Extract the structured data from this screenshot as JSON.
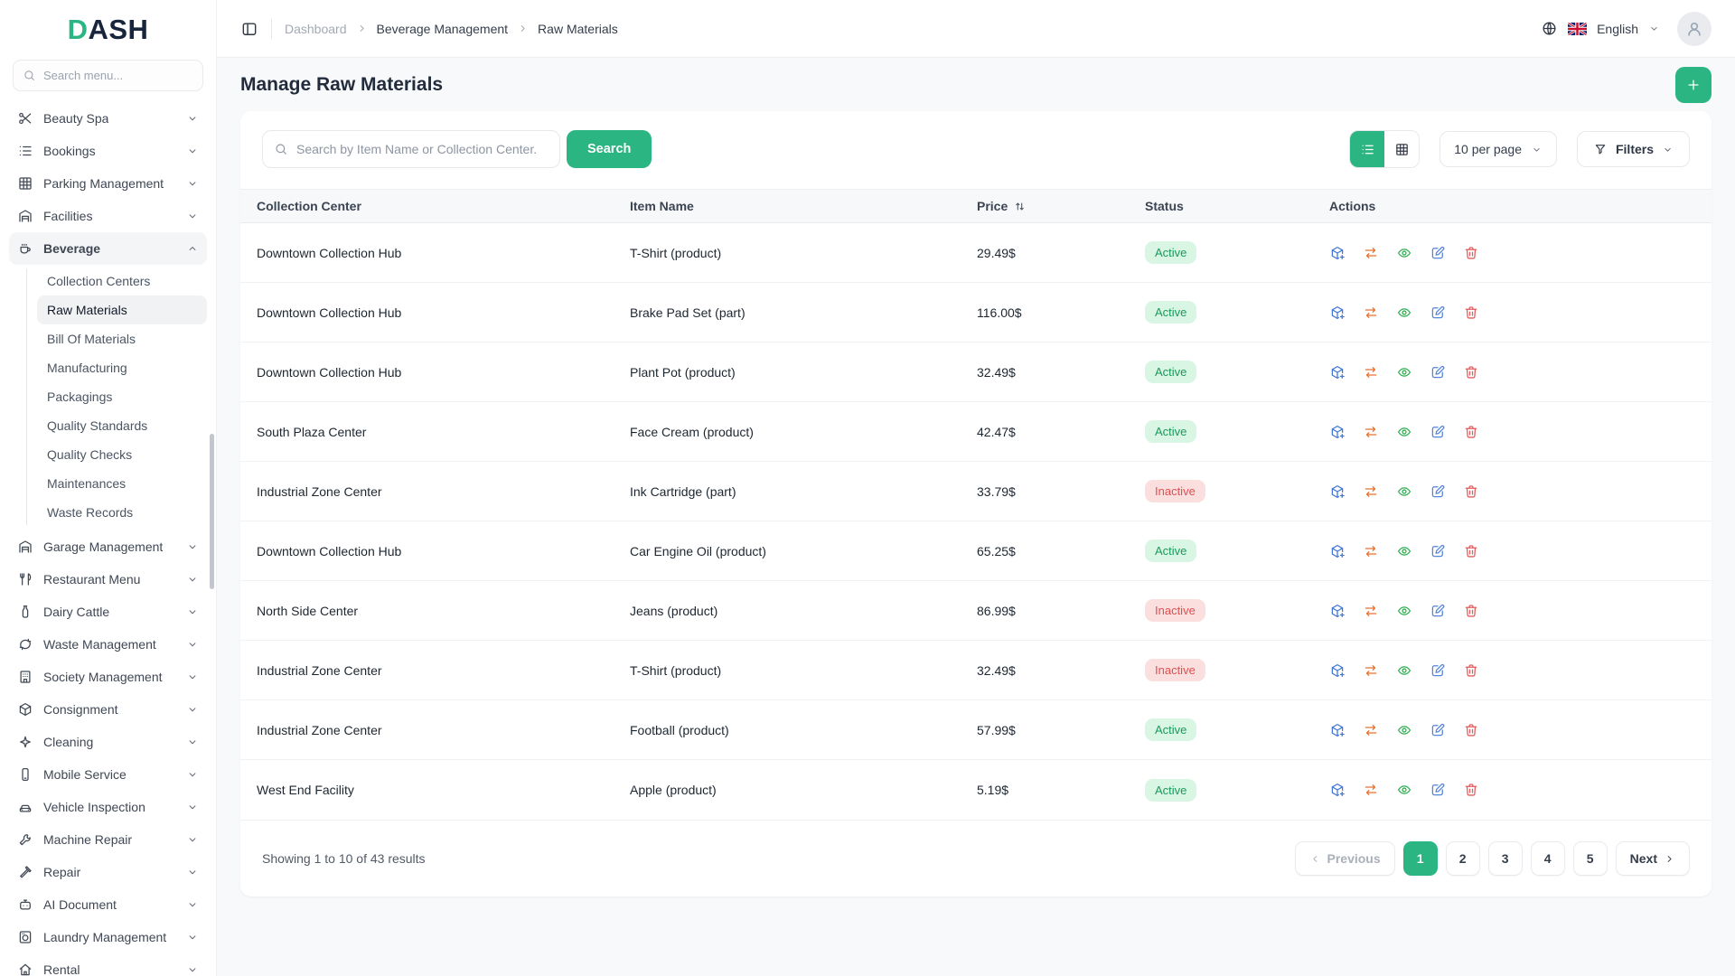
{
  "app": {
    "logo_accent": "D",
    "logo_rest": "ASH"
  },
  "colors": {
    "accent": "#2bb583",
    "active_bg": "#d9f6e5",
    "active_text": "#199a59",
    "inactive_bg": "#fbdfdf",
    "inactive_text": "#e04f4f",
    "action_blue": "#4277d6",
    "action_orange": "#e8712e",
    "action_green": "#2fae52",
    "action_blue2": "#5585dd",
    "action_red": "#e25c5c"
  },
  "sidebar": {
    "search_placeholder": "Search menu...",
    "items": [
      {
        "label": "Beauty Spa",
        "icon": "scissors"
      },
      {
        "label": "Bookings",
        "icon": "list"
      },
      {
        "label": "Parking Management",
        "icon": "grid"
      },
      {
        "label": "Facilities",
        "icon": "garage"
      },
      {
        "label": "Beverage",
        "icon": "coffee",
        "expanded": true,
        "children": [
          {
            "label": "Collection Centers"
          },
          {
            "label": "Raw Materials",
            "active": true
          },
          {
            "label": "Bill Of Materials"
          },
          {
            "label": "Manufacturing"
          },
          {
            "label": "Packagings"
          },
          {
            "label": "Quality Standards"
          },
          {
            "label": "Quality Checks"
          },
          {
            "label": "Maintenances"
          },
          {
            "label": "Waste Records"
          }
        ]
      },
      {
        "label": "Garage Management",
        "icon": "garage"
      },
      {
        "label": "Restaurant Menu",
        "icon": "utensils"
      },
      {
        "label": "Dairy Cattle",
        "icon": "bottle"
      },
      {
        "label": "Waste Management",
        "icon": "recycle"
      },
      {
        "label": "Society Management",
        "icon": "building"
      },
      {
        "label": "Consignment",
        "icon": "package"
      },
      {
        "label": "Cleaning",
        "icon": "sparkle"
      },
      {
        "label": "Mobile Service",
        "icon": "phone"
      },
      {
        "label": "Vehicle Inspection",
        "icon": "car"
      },
      {
        "label": "Machine Repair",
        "icon": "wrench"
      },
      {
        "label": "Repair",
        "icon": "hammer"
      },
      {
        "label": "AI Document",
        "icon": "robot"
      },
      {
        "label": "Laundry Management",
        "icon": "washer"
      },
      {
        "label": "Rental",
        "icon": "home"
      }
    ]
  },
  "topbar": {
    "breadcrumb": [
      "Dashboard",
      "Beverage Management",
      "Raw Materials"
    ],
    "language": "English"
  },
  "page": {
    "title": "Manage Raw Materials"
  },
  "toolbar": {
    "search_placeholder": "Search by Item Name or Collection Center.",
    "search_button": "Search",
    "per_page": "10 per page",
    "filters_label": "Filters"
  },
  "table": {
    "columns": [
      "Collection Center",
      "Item Name",
      "Price",
      "Status",
      "Actions"
    ],
    "row_actions": [
      "package-plus",
      "swap",
      "eye",
      "edit",
      "trash"
    ],
    "rows": [
      {
        "collection_center": "Downtown Collection Hub",
        "item_name": "T-Shirt (product)",
        "price": "29.49$",
        "status": "Active"
      },
      {
        "collection_center": "Downtown Collection Hub",
        "item_name": "Brake Pad Set (part)",
        "price": "116.00$",
        "status": "Active"
      },
      {
        "collection_center": "Downtown Collection Hub",
        "item_name": "Plant Pot (product)",
        "price": "32.49$",
        "status": "Active"
      },
      {
        "collection_center": "South Plaza Center",
        "item_name": "Face Cream (product)",
        "price": "42.47$",
        "status": "Active"
      },
      {
        "collection_center": "Industrial Zone Center",
        "item_name": "Ink Cartridge (part)",
        "price": "33.79$",
        "status": "Inactive"
      },
      {
        "collection_center": "Downtown Collection Hub",
        "item_name": "Car Engine Oil (product)",
        "price": "65.25$",
        "status": "Active"
      },
      {
        "collection_center": "North Side Center",
        "item_name": "Jeans (product)",
        "price": "86.99$",
        "status": "Inactive"
      },
      {
        "collection_center": "Industrial Zone Center",
        "item_name": "T-Shirt (product)",
        "price": "32.49$",
        "status": "Inactive"
      },
      {
        "collection_center": "Industrial Zone Center",
        "item_name": "Football (product)",
        "price": "57.99$",
        "status": "Active"
      },
      {
        "collection_center": "West End Facility",
        "item_name": "Apple (product)",
        "price": "5.19$",
        "status": "Active"
      }
    ]
  },
  "pagination": {
    "summary": "Showing 1 to 10 of 43 results",
    "previous_label": "Previous",
    "next_label": "Next",
    "pages": [
      "1",
      "2",
      "3",
      "4",
      "5"
    ],
    "active_page": "1"
  }
}
